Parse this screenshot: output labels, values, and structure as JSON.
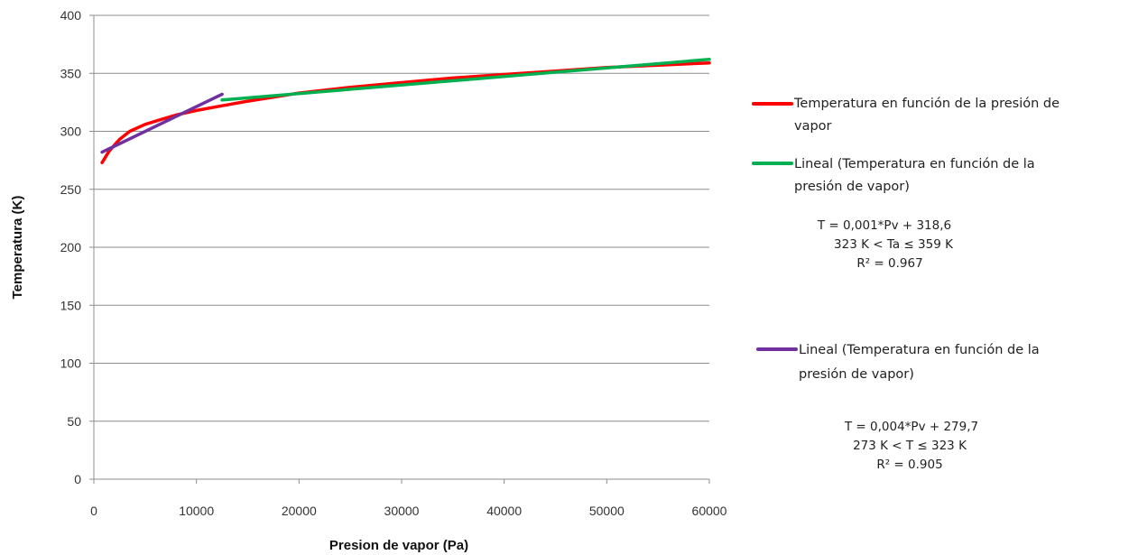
{
  "chart_data": {
    "type": "line",
    "xlabel": "Presion de vapor (Pa)",
    "ylabel": "Temperatura (K)",
    "xlim": [
      0,
      60000
    ],
    "ylim": [
      0,
      400
    ],
    "x_ticks": [
      "0",
      "10000",
      "20000",
      "30000",
      "40000",
      "50000",
      "60000"
    ],
    "y_ticks": [
      "0",
      "50",
      "100",
      "150",
      "200",
      "250",
      "300",
      "350",
      "400"
    ],
    "grid": "horizontal",
    "legend_position": "right",
    "series": [
      {
        "name": "Temperatura en función de la presión de vapor",
        "color": "#ff0000",
        "x": [
          800,
          1500,
          2500,
          3500,
          5000,
          6500,
          8000,
          10000,
          12500,
          15000,
          20000,
          25000,
          30000,
          35000,
          40000,
          45000,
          50000,
          55000,
          60000
        ],
        "y": [
          273,
          283,
          293,
          300,
          306,
          310,
          314,
          318,
          322,
          326,
          333,
          338,
          342,
          346,
          349,
          352,
          355,
          357,
          359
        ]
      },
      {
        "name": "Lineal (Temperatura en función de la presión de vapor)",
        "color": "#00b050",
        "x": [
          12500,
          60000
        ],
        "y": [
          327,
          362
        ]
      },
      {
        "name": "Lineal (Temperatura en función de la presión de vapor)",
        "color": "#7030a0",
        "x": [
          800,
          12500
        ],
        "y": [
          282,
          332
        ]
      }
    ],
    "annotations": {
      "green_fit": [
        "T = 0,001*Pv  + 318,6",
        "323  K < Ta ≤ 359  K",
        "R² = 0.967"
      ],
      "purple_fit": [
        "T = 0,004*Pv  + 279,7",
        "273  K < T ≤ 323  K",
        "R² = 0.905"
      ]
    }
  },
  "legend": {
    "red_line1": "Temperatura en función de la presión de",
    "red_line2": "vapor",
    "green_line1": "Lineal (Temperatura en función de la",
    "green_line2": "presión de vapor)",
    "purple_line1": "Lineal (Temperatura en función de la",
    "purple_line2": "presión de vapor)"
  }
}
